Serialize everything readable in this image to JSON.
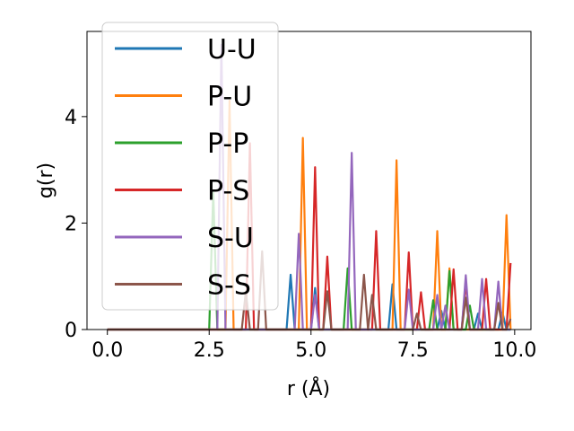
{
  "chart_data": {
    "type": "line",
    "title": "",
    "xlabel": "r (Å)",
    "ylabel": "g(r)",
    "xlim": [
      -0.5,
      10.4
    ],
    "ylim": [
      0,
      5.6
    ],
    "xticks": [
      0.0,
      2.5,
      5.0,
      7.5,
      10.0
    ],
    "xtick_labels": [
      "0.0",
      "2.5",
      "5.0",
      "7.5",
      "10.0"
    ],
    "yticks": [
      0,
      2,
      4
    ],
    "ytick_labels": [
      "0",
      "2",
      "4"
    ],
    "grid": false,
    "legend_position": "upper-left",
    "series": [
      {
        "name": "U-U",
        "color": "#1f77b4",
        "peaks": [
          [
            4.45,
            1.03
          ],
          [
            5.1,
            0.78
          ],
          [
            7.0,
            0.85
          ],
          [
            8.2,
            0.35
          ],
          [
            9.1,
            0.3
          ],
          [
            9.7,
            0.32
          ]
        ]
      },
      {
        "name": "P-U",
        "color": "#ff7f0e",
        "peaks": [
          [
            2.95,
            4.3
          ],
          [
            4.75,
            3.6
          ],
          [
            7.1,
            3.18
          ],
          [
            8.1,
            1.85
          ],
          [
            8.35,
            1.15
          ],
          [
            9.75,
            2.15
          ]
        ]
      },
      {
        "name": "P-P",
        "color": "#2ca02c",
        "peaks": [
          [
            2.6,
            2.6
          ],
          [
            5.9,
            1.15
          ],
          [
            8.0,
            0.55
          ],
          [
            8.4,
            1.1
          ],
          [
            8.9,
            0.45
          ]
        ]
      },
      {
        "name": "P-S",
        "color": "#d62728",
        "peaks": [
          [
            3.5,
            3.5
          ],
          [
            5.1,
            3.05
          ],
          [
            5.4,
            1.37
          ],
          [
            6.6,
            1.85
          ],
          [
            7.4,
            1.45
          ],
          [
            7.7,
            0.7
          ],
          [
            8.5,
            1.13
          ],
          [
            8.8,
            0.9
          ],
          [
            9.3,
            0.95
          ],
          [
            9.9,
            1.25
          ]
        ]
      },
      {
        "name": "S-U",
        "color": "#9467bd",
        "peaks": [
          [
            2.75,
            5.35
          ],
          [
            4.7,
            1.8
          ],
          [
            5.1,
            0.65
          ],
          [
            6.0,
            3.32
          ],
          [
            7.35,
            0.75
          ],
          [
            8.05,
            0.65
          ],
          [
            8.3,
            0.45
          ],
          [
            8.8,
            1.02
          ],
          [
            9.2,
            0.95
          ],
          [
            9.6,
            0.9
          ]
        ]
      },
      {
        "name": "S-S",
        "color": "#8c564b",
        "peaks": [
          [
            3.4,
            0.72
          ],
          [
            3.75,
            1.47
          ],
          [
            5.35,
            0.72
          ],
          [
            6.3,
            1.03
          ],
          [
            6.5,
            0.65
          ],
          [
            7.55,
            0.3
          ],
          [
            8.75,
            0.6
          ],
          [
            9.6,
            0.5
          ],
          [
            9.9,
            0.2
          ]
        ]
      }
    ]
  }
}
